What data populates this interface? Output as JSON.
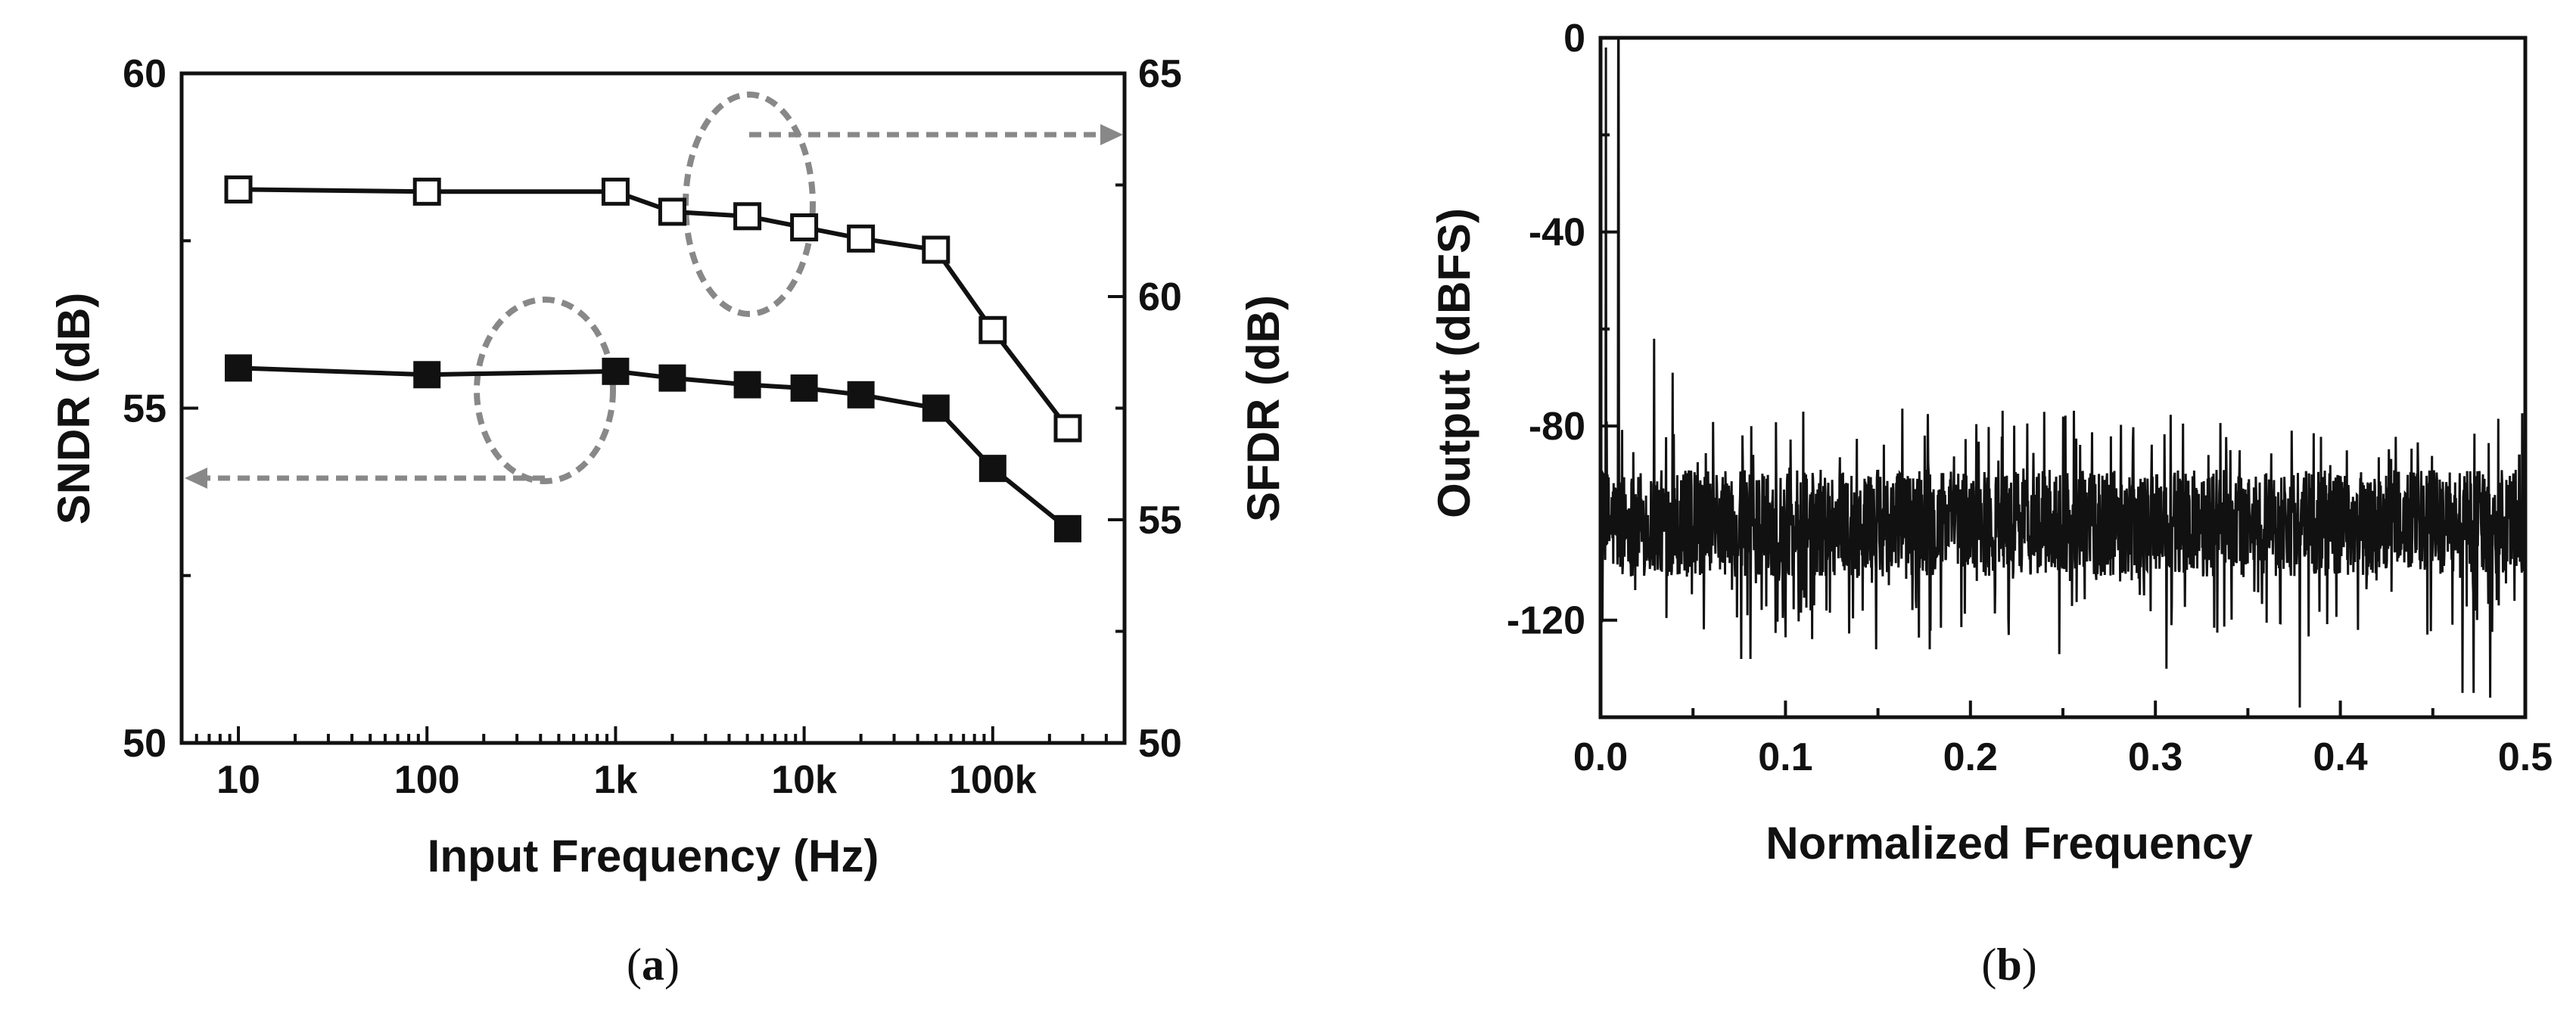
{
  "chart_data": [
    {
      "panel": "a",
      "caption": "a",
      "type": "line",
      "xscale": "log",
      "xlabel": "Input Frequency (Hz)",
      "ylabel_left": "SNDR (dB)",
      "ylabel_right": "SFDR (dB)",
      "xlim": [
        5,
        500000
      ],
      "ylim_left": [
        50,
        60
      ],
      "ylim_right": [
        50,
        65
      ],
      "x_ticks": [
        10,
        100,
        1000,
        10000,
        100000
      ],
      "x_tick_labels": [
        "10",
        "100",
        "1k",
        "10k",
        "100k"
      ],
      "y_left_ticks": [
        50,
        55,
        60
      ],
      "y_left_tick_labels": [
        "50",
        "55",
        "60"
      ],
      "y_right_ticks": [
        50,
        55,
        60,
        65
      ],
      "y_right_tick_labels": [
        "50",
        "55",
        "60",
        "65"
      ],
      "series": [
        {
          "name": "SNDR",
          "axis": "left",
          "marker": "filled-square",
          "x": [
            10,
            100,
            1000,
            2000,
            5000,
            10000,
            20000,
            50000,
            100000,
            250000
          ],
          "y": [
            55.6,
            55.5,
            55.55,
            55.45,
            55.35,
            55.3,
            55.2,
            55.0,
            54.1,
            53.2
          ]
        },
        {
          "name": "SFDR",
          "axis": "right",
          "marker": "open-square",
          "x": [
            10,
            100,
            1000,
            2000,
            5000,
            10000,
            20000,
            50000,
            100000,
            250000
          ],
          "y": [
            62.4,
            62.35,
            62.35,
            61.9,
            61.8,
            61.55,
            61.3,
            61.05,
            59.25,
            57.05
          ]
        }
      ],
      "annotations": [
        {
          "type": "ellipse-arrow",
          "series": "SNDR",
          "points_to": "left-axis"
        },
        {
          "type": "ellipse-arrow",
          "series": "SFDR",
          "points_to": "right-axis"
        }
      ]
    },
    {
      "panel": "b",
      "caption": "b",
      "type": "line",
      "xlabel": "Normalized Frequency",
      "ylabel": "Output (dBFS)",
      "xlim": [
        0,
        0.5
      ],
      "ylim": [
        -140,
        0
      ],
      "x_tick_labels": [
        "0.0",
        "0.1",
        "0.2",
        "0.3",
        "0.4",
        "0.5"
      ],
      "y_tick_labels": [
        "0",
        "-40",
        "-80",
        "-120"
      ],
      "y_ticks": [
        0,
        -40,
        -80,
        -120
      ],
      "fundamental": {
        "x": 0.0095,
        "y": 0
      },
      "harmonic_spurs": [
        {
          "x": 0.003,
          "y": -2
        },
        {
          "x": 0.029,
          "y": -62
        },
        {
          "x": 0.039,
          "y": -69
        }
      ],
      "noise_floor": {
        "mean": -100,
        "max": -76,
        "min": -138
      },
      "deep_nulls": [
        {
          "x": 0.076,
          "y": -128
        },
        {
          "x": 0.081,
          "y": -128
        },
        {
          "x": 0.149,
          "y": -126
        },
        {
          "x": 0.178,
          "y": -126
        },
        {
          "x": 0.248,
          "y": -127
        },
        {
          "x": 0.306,
          "y": -130
        },
        {
          "x": 0.378,
          "y": -138
        },
        {
          "x": 0.466,
          "y": -135
        },
        {
          "x": 0.472,
          "y": -135
        },
        {
          "x": 0.481,
          "y": -136
        }
      ]
    }
  ]
}
